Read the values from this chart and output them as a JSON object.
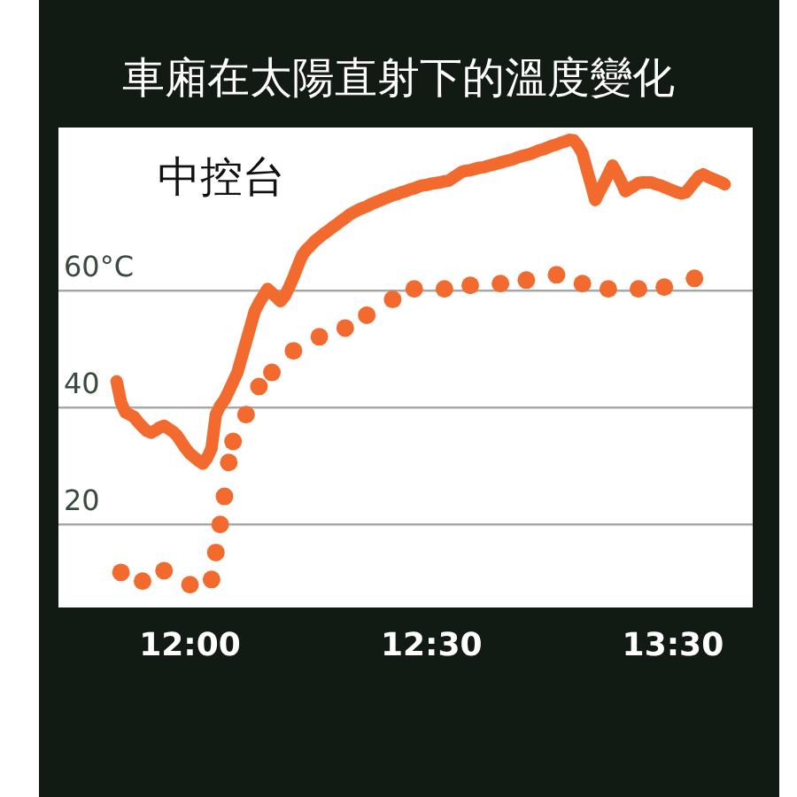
{
  "chart_data": {
    "type": "line",
    "title": "車廂在太陽直射下的溫度變化",
    "annotations": [
      "中控台"
    ],
    "categories": [
      null,
      null,
      null,
      null,
      null,
      null,
      null,
      null,
      null,
      null,
      null,
      null,
      null,
      null,
      null,
      null,
      null,
      null,
      null,
      null,
      null,
      null,
      null,
      null,
      null,
      null,
      null,
      null,
      null,
      null,
      "12:00",
      null,
      null,
      null,
      null,
      null,
      null,
      null,
      null,
      null,
      null,
      null,
      null,
      null,
      null,
      null,
      null,
      null,
      null,
      null,
      null,
      null,
      null,
      null,
      null,
      null,
      null,
      null,
      null,
      null,
      null,
      null,
      null,
      null,
      null,
      null,
      null,
      null,
      null,
      null,
      null,
      null,
      null,
      null,
      null,
      null,
      null,
      null,
      null,
      null,
      null,
      null,
      null,
      null,
      null,
      null,
      "12:30",
      null,
      null,
      null,
      null,
      null,
      null,
      null,
      null,
      null,
      null,
      null,
      null,
      null,
      null,
      null,
      null,
      null,
      null,
      null,
      null,
      null,
      null,
      null,
      null,
      null,
      null,
      null,
      null,
      null,
      null,
      null,
      null,
      null,
      null,
      null,
      null,
      null,
      null,
      null,
      null,
      null,
      null,
      null,
      null,
      null,
      null,
      null,
      null,
      null,
      null,
      null,
      null,
      null,
      null,
      null,
      "13:30",
      null,
      null,
      null,
      null,
      null,
      null,
      null,
      null,
      null,
      null,
      null,
      null,
      null,
      null,
      null,
      null,
      null,
      null
    ],
    "ylim": [
      5.8,
      87.9
    ],
    "yticks": [
      20,
      40,
      {
        "value": 60,
        "label": "60°C"
      }
    ],
    "grid": "y",
    "series": [
      {
        "type": "line",
        "color": "#f26a2e",
        "line_style": "solid",
        "marker": "none",
        "values": [
          null,
          null,
          null,
          null,
          null,
          null,
          null,
          null,
          null,
          null,
          null,
          null,
          null,
          44.5,
          40.9,
          39.2,
          38.8,
          38.4,
          37.5,
          36.7,
          36,
          35.7,
          36.1,
          36.6,
          36.9,
          36.4,
          35.9,
          35.2,
          34.1,
          33,
          32.1,
          31.5,
          30.9,
          30.4,
          31.4,
          33,
          38.8,
          40.3,
          41.3,
          42.8,
          44.4,
          46,
          48.6,
          51.2,
          53.8,
          56.4,
          57.9,
          59.1,
          60.3,
          59.6,
          58.9,
          58.2,
          59.1,
          60.6,
          62.3,
          64.2,
          66,
          67,
          67.7,
          68.5,
          69.1,
          69.7,
          70.2,
          70.8,
          71.3,
          71.9,
          72.4,
          73,
          73.4,
          73.8,
          74.1,
          74.4,
          74.8,
          75.1,
          75.4,
          75.7,
          76,
          76.3,
          76.5,
          76.8,
          77,
          77.3,
          77.5,
          77.8,
          78,
          78.1,
          78.3,
          78.4,
          78.5,
          78.7,
          78.8,
          79.3,
          79.8,
          80.3,
          80.5,
          80.6,
          80.8,
          81,
          81.1,
          81.3,
          81.5,
          81.7,
          81.9,
          82.1,
          82.3,
          82.5,
          82.8,
          83,
          83.2,
          83.4,
          83.7,
          84,
          84.2,
          84.5,
          84.8,
          85,
          85.3,
          85.5,
          85.8,
          85.7,
          84.8,
          83.5,
          80.8,
          78.2,
          75.5,
          77,
          78.4,
          79.9,
          81.4,
          80.1,
          78.6,
          77,
          77.5,
          77.9,
          78.4,
          78.5,
          78.5,
          78.5,
          78.2,
          78,
          77.7,
          77.4,
          77.1,
          76.8,
          76.6,
          76.8,
          77.7,
          78.6,
          79.5,
          79.9,
          79.5,
          79.2,
          78.9,
          78.6,
          78.2,
          null,
          null,
          null,
          null,
          null,
          null
        ]
      },
      {
        "type": "scatter",
        "color": "#f26a2e",
        "marker": "circle",
        "values": [
          null,
          null,
          null,
          null,
          null,
          null,
          null,
          null,
          null,
          null,
          null,
          null,
          null,
          null,
          11.8,
          null,
          null,
          null,
          null,
          10.3,
          null,
          null,
          null,
          null,
          12.1,
          null,
          null,
          null,
          null,
          null,
          9.7,
          null,
          null,
          null,
          null,
          10.6,
          15.2,
          20,
          24.8,
          30.6,
          34.2,
          null,
          null,
          38.8,
          null,
          null,
          43.6,
          null,
          null,
          46,
          null,
          null,
          null,
          null,
          49.7,
          null,
          null,
          null,
          null,
          null,
          52.1,
          null,
          null,
          null,
          null,
          null,
          53.6,
          null,
          null,
          null,
          null,
          55.8,
          null,
          null,
          null,
          null,
          null,
          58.5,
          null,
          null,
          null,
          null,
          60.3,
          null,
          null,
          null,
          null,
          null,
          null,
          60.3,
          null,
          null,
          null,
          null,
          null,
          60.9,
          null,
          null,
          null,
          null,
          null,
          null,
          61.2,
          null,
          null,
          null,
          null,
          null,
          61.8,
          null,
          null,
          null,
          null,
          null,
          null,
          62.7,
          null,
          null,
          null,
          null,
          null,
          61.2,
          null,
          null,
          null,
          null,
          null,
          60.3,
          null,
          null,
          null,
          null,
          null,
          null,
          60.3,
          null,
          null,
          null,
          null,
          null,
          60.6,
          null,
          null,
          null,
          null,
          null,
          null,
          62.1,
          null,
          null,
          null,
          null,
          null,
          null,
          null,
          null,
          null,
          null,
          null,
          null,
          null
        ]
      }
    ]
  }
}
